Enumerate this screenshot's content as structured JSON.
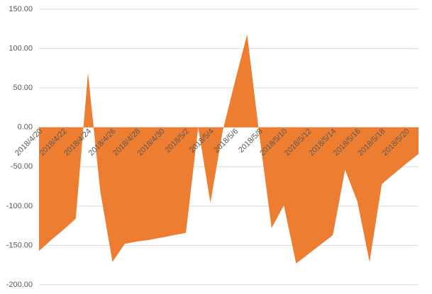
{
  "chart_data": {
    "type": "area",
    "color": "#ed7d31",
    "grid": true,
    "categories": [
      "2018/4/20",
      null,
      "2018/4/22",
      null,
      "2018/4/24",
      null,
      "2018/4/26",
      null,
      "2018/4/28",
      null,
      "2018/4/30",
      null,
      "2018/5/2",
      null,
      "2018/5/4",
      null,
      "2018/5/6",
      null,
      "2018/5/8",
      null,
      "2018/5/10",
      null,
      "2018/5/12",
      null,
      "2018/5/14",
      null,
      "2018/5/16",
      null,
      "2018/5/18",
      null,
      "2018/5/20",
      null
    ],
    "values": [
      -157,
      -143,
      -130,
      -116,
      69,
      -81,
      -171,
      -148,
      -145,
      -143,
      -140,
      -137,
      -134,
      0,
      -96,
      -5,
      58,
      118,
      -10,
      -128,
      -99,
      -173,
      -161,
      -149,
      -137,
      -54,
      -94,
      -171,
      -72,
      -59,
      -46,
      -34
    ],
    "ylim": [
      -200,
      150
    ],
    "yticks": [
      {
        "value": -200,
        "label": "-200.00"
      },
      {
        "value": -150,
        "label": "-150.00"
      },
      {
        "value": -100,
        "label": "-100.00"
      },
      {
        "value": -50,
        "label": "-50.00"
      },
      {
        "value": 0,
        "label": "0.00"
      },
      {
        "value": 50,
        "label": "50.00"
      },
      {
        "value": 100,
        "label": "100.00"
      },
      {
        "value": 150,
        "label": "150.00"
      }
    ]
  }
}
